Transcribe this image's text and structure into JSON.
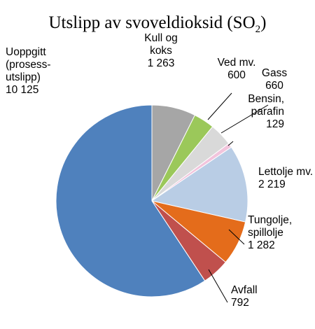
{
  "chart_data": {
    "type": "pie",
    "title": "Utslipp av svoveldioksid (SO",
    "title_subscript": "2",
    "title_suffix": ")",
    "start": "12 o'clock",
    "direction": "clockwise",
    "slices": [
      {
        "label_lines": [
          "Kull og",
          "koks"
        ],
        "value_text": "1 263",
        "value": 1263,
        "color": "#a6a6a6"
      },
      {
        "label_lines": [
          "Ved mv."
        ],
        "value_text": "600",
        "value": 600,
        "color": "#9bc85a"
      },
      {
        "label_lines": [
          "Gass"
        ],
        "value_text": "660",
        "value": 660,
        "color": "#d9d9d9"
      },
      {
        "label_lines": [
          "Bensin,",
          "parafin"
        ],
        "value_text": "129",
        "value": 129,
        "color": "#f2c4dc"
      },
      {
        "label_lines": [
          "Lettolje mv."
        ],
        "value_text": "2 219",
        "value": 2219,
        "color": "#b9cde5"
      },
      {
        "label_lines": [
          "Tungolje,",
          "spillolje"
        ],
        "value_text": "1 282",
        "value": 1282,
        "color": "#e46c1b"
      },
      {
        "label_lines": [
          "Avfall"
        ],
        "value_text": "792",
        "value": 792,
        "color": "#c0504d"
      },
      {
        "label_lines": [
          "Uoppgitt",
          "(prosess-",
          "utslipp)"
        ],
        "value_text": "10 125",
        "value": 10125,
        "color": "#4f81bd"
      }
    ]
  }
}
